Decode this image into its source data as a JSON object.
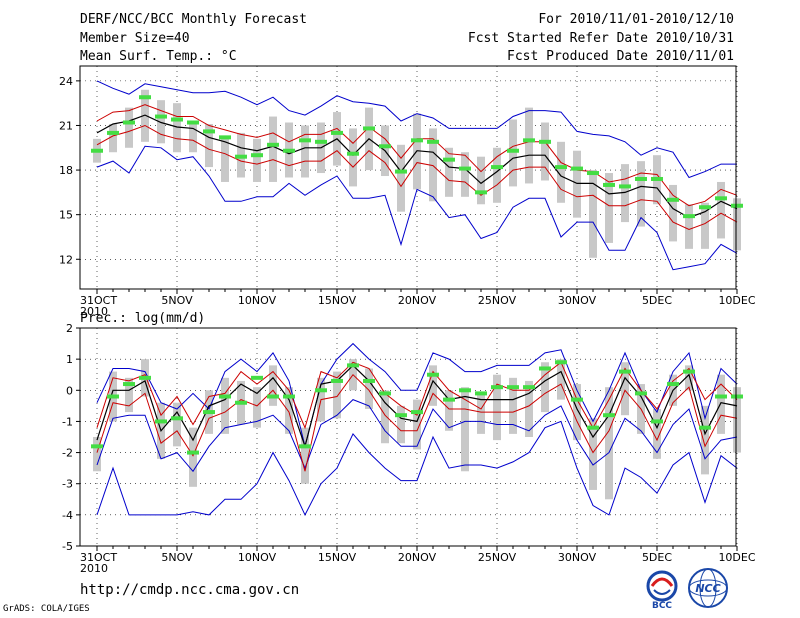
{
  "header": {
    "title": "DERF/NCC/BCC Monthly Forecast",
    "member": "Member Size=40",
    "variable": "Mean Surf. Temp.: °C",
    "period": "For 2010/11/01-2010/12/10",
    "started": "Fcst Started Refer Date 2010/10/31",
    "produced": "Fcst Produced Date 2010/11/01"
  },
  "footer": {
    "url": "http://cmdp.ncc.cma.gov.cn",
    "credit": "GrADS: COLA/IGES",
    "logo_left_label": "BCC",
    "logo_right_label": "NCC"
  },
  "colors": {
    "envelope": "#0000cc",
    "spread": "#cc0000",
    "mean": "#000000",
    "box": "#c8c8c8",
    "marker": "#44dd44"
  },
  "chart_data": [
    {
      "type": "box-line",
      "title": "Mean Surf. Temp.: °C",
      "xlabel": "",
      "ylabel": "",
      "ylim": [
        10,
        25
      ],
      "yticks": [
        12,
        15,
        18,
        21,
        24
      ],
      "x_tick_labels": [
        "31OCT\n2010",
        "5NOV",
        "10NOV",
        "15NOV",
        "20NOV",
        "25NOV",
        "30NOV",
        "5DEC",
        "10DEC"
      ],
      "days": 41,
      "series": [
        {
          "name": "max",
          "values": [
            24.0,
            23.5,
            23.1,
            23.8,
            23.6,
            23.4,
            23.2,
            23.2,
            23.3,
            22.9,
            22.4,
            22.9,
            22.0,
            21.7,
            22.3,
            23.0,
            22.6,
            22.5,
            22.3,
            21.3,
            21.8,
            21.5,
            20.8,
            20.8,
            20.8,
            20.8,
            21.6,
            22.0,
            22.0,
            21.9,
            20.6,
            20.4,
            20.3,
            19.9,
            19.0,
            19.5,
            19.2,
            17.5,
            17.9,
            18.4,
            18.4
          ]
        },
        {
          "name": "upper",
          "values": [
            21.3,
            21.9,
            22.0,
            22.4,
            22.0,
            21.6,
            21.6,
            21.0,
            20.7,
            20.4,
            20.2,
            20.5,
            19.9,
            20.4,
            20.4,
            20.8,
            19.8,
            20.9,
            20.1,
            18.8,
            20.1,
            20.1,
            19.1,
            19.0,
            17.9,
            18.9,
            19.6,
            19.9,
            19.9,
            18.5,
            18.0,
            17.9,
            17.2,
            17.4,
            17.8,
            17.7,
            16.3,
            15.6,
            15.9,
            16.7,
            16.3
          ]
        },
        {
          "name": "mean",
          "values": [
            20.5,
            21.1,
            21.3,
            21.7,
            21.2,
            20.9,
            20.8,
            20.2,
            19.9,
            19.5,
            19.3,
            19.6,
            19.1,
            19.5,
            19.5,
            20.1,
            19.0,
            20.1,
            19.3,
            17.9,
            19.3,
            19.2,
            18.2,
            18.1,
            17.1,
            17.9,
            18.8,
            19.0,
            19.0,
            17.6,
            17.1,
            17.1,
            16.4,
            16.5,
            16.9,
            16.8,
            15.4,
            14.8,
            15.2,
            15.9,
            15.4
          ]
        },
        {
          "name": "lower",
          "values": [
            19.7,
            20.3,
            20.6,
            21.0,
            20.4,
            20.1,
            20.0,
            19.4,
            19.1,
            18.6,
            18.4,
            18.7,
            18.3,
            18.6,
            18.6,
            19.3,
            18.2,
            19.3,
            18.5,
            16.9,
            18.5,
            18.3,
            17.3,
            17.2,
            16.3,
            17.0,
            18.0,
            18.2,
            18.2,
            16.7,
            16.2,
            16.3,
            15.6,
            15.6,
            16.0,
            15.9,
            14.5,
            14.0,
            14.4,
            15.1,
            14.5
          ]
        },
        {
          "name": "min",
          "values": [
            18.2,
            18.6,
            17.8,
            19.6,
            19.5,
            18.7,
            18.9,
            17.6,
            15.9,
            15.9,
            16.2,
            16.2,
            17.1,
            16.3,
            17.0,
            17.6,
            16.1,
            16.1,
            16.3,
            13.0,
            16.7,
            16.2,
            14.8,
            15.0,
            13.4,
            13.8,
            15.5,
            16.1,
            16.1,
            13.5,
            14.5,
            14.5,
            12.6,
            12.6,
            14.8,
            13.8,
            11.3,
            11.5,
            11.7,
            13.0,
            12.4
          ]
        },
        {
          "name": "box_high",
          "values": [
            20.1,
            21.1,
            22.2,
            23.4,
            22.7,
            22.5,
            21.2,
            21.1,
            20.2,
            20.5,
            20.1,
            21.6,
            21.2,
            21.0,
            21.2,
            21.9,
            20.8,
            22.2,
            21.0,
            19.7,
            21.8,
            20.8,
            19.5,
            19.2,
            18.9,
            19.5,
            21.4,
            22.2,
            21.2,
            19.9,
            19.3,
            18.0,
            17.8,
            18.4,
            18.6,
            19.0,
            17.0,
            15.7,
            15.8,
            17.2,
            16.1
          ]
        },
        {
          "name": "box_low",
          "values": [
            18.5,
            19.2,
            19.5,
            19.9,
            19.8,
            19.2,
            19.2,
            18.2,
            17.2,
            17.5,
            17.2,
            17.2,
            17.5,
            17.5,
            17.8,
            18.3,
            16.9,
            18.0,
            17.6,
            15.2,
            16.7,
            15.9,
            16.2,
            16.2,
            15.7,
            15.8,
            16.9,
            17.1,
            17.3,
            15.8,
            14.8,
            12.1,
            13.1,
            14.5,
            14.2,
            15.7,
            13.2,
            12.7,
            12.7,
            13.4,
            12.6
          ]
        },
        {
          "name": "marker",
          "values": [
            19.3,
            20.5,
            21.2,
            22.9,
            21.6,
            21.4,
            21.2,
            20.6,
            20.2,
            18.9,
            19.0,
            19.7,
            19.3,
            20.0,
            19.9,
            20.5,
            19.1,
            20.8,
            19.6,
            17.9,
            20.0,
            19.9,
            18.7,
            18.1,
            16.5,
            18.2,
            19.3,
            20.0,
            19.9,
            18.2,
            18.1,
            17.8,
            17.0,
            16.9,
            17.4,
            17.4,
            16.0,
            14.9,
            15.5,
            16.1,
            15.6
          ]
        }
      ]
    },
    {
      "type": "box-line",
      "title": "Prec.: log(mm/d)",
      "xlabel": "",
      "ylabel": "",
      "ylim": [
        -5,
        2
      ],
      "yticks": [
        -5,
        -4,
        -3,
        -2,
        -1,
        0,
        1,
        2
      ],
      "x_tick_labels": [
        "31OCT\n2010",
        "5NOV",
        "10NOV",
        "15NOV",
        "20NOV",
        "25NOV",
        "30NOV",
        "5DEC",
        "10DEC"
      ],
      "days": 41,
      "series": [
        {
          "name": "max",
          "values": [
            -0.4,
            0.7,
            0.7,
            0.6,
            -0.4,
            -0.6,
            -0.1,
            -0.6,
            0.6,
            1.0,
            0.6,
            1.2,
            0.3,
            -1.8,
            0.2,
            1.0,
            1.5,
            1.0,
            0.6,
            0.0,
            0.0,
            1.2,
            1.0,
            0.6,
            0.6,
            0.8,
            0.8,
            0.8,
            1.2,
            1.3,
            0.0,
            -1.0,
            0.0,
            1.2,
            0.0,
            -0.7,
            0.6,
            1.2,
            -0.9,
            0.7,
            0.2
          ]
        },
        {
          "name": "upper",
          "values": [
            -1.2,
            0.4,
            0.3,
            0.5,
            -0.8,
            -0.2,
            -1.1,
            -0.2,
            -0.1,
            0.6,
            0.2,
            0.6,
            0.0,
            -1.2,
            0.6,
            0.4,
            0.9,
            0.7,
            -0.1,
            -0.5,
            -0.8,
            0.6,
            0.0,
            -0.3,
            -0.6,
            0.2,
            0.0,
            0.0,
            0.5,
            0.9,
            -0.3,
            -1.2,
            -0.3,
            0.7,
            0.0,
            -0.6,
            0.3,
            0.7,
            -0.3,
            0.2,
            -0.3
          ]
        },
        {
          "name": "mean",
          "values": [
            -1.6,
            0.0,
            0.0,
            0.3,
            -1.3,
            -0.7,
            -1.6,
            -0.5,
            -0.3,
            0.2,
            -0.1,
            0.4,
            -0.3,
            -1.8,
            0.2,
            0.3,
            0.8,
            0.3,
            -0.4,
            -0.9,
            -1.0,
            0.3,
            -0.3,
            -0.2,
            -0.3,
            -0.3,
            -0.3,
            -0.1,
            0.3,
            0.6,
            -0.6,
            -1.5,
            -0.8,
            0.4,
            -0.2,
            -1.2,
            0.0,
            0.5,
            -1.4,
            -0.4,
            -0.5
          ]
        },
        {
          "name": "lower",
          "values": [
            -2.0,
            -0.4,
            -0.5,
            -0.1,
            -1.7,
            -1.3,
            -2.1,
            -0.9,
            -0.7,
            -0.3,
            -0.5,
            0.0,
            -0.7,
            -2.6,
            -0.3,
            -0.2,
            0.5,
            0.0,
            -0.8,
            -1.3,
            -1.3,
            -0.1,
            -0.6,
            -0.6,
            -0.7,
            -0.7,
            -0.7,
            -0.5,
            -0.1,
            0.2,
            -1.0,
            -2.0,
            -1.3,
            0.0,
            -0.6,
            -1.6,
            -0.4,
            0.1,
            -1.8,
            -0.8,
            -0.9
          ]
        },
        {
          "name": "min",
          "values": [
            -2.4,
            -0.9,
            -0.8,
            -0.8,
            -2.2,
            -2.0,
            -2.6,
            -1.8,
            -1.2,
            -1.1,
            -1.0,
            -0.8,
            -1.3,
            -2.5,
            -1.1,
            -0.8,
            -0.3,
            -0.5,
            -1.3,
            -1.8,
            -1.8,
            -0.6,
            -1.2,
            -1.0,
            -1.0,
            -1.1,
            -1.1,
            -1.3,
            -0.8,
            -0.5,
            -1.6,
            -2.4,
            -2.0,
            -0.9,
            -1.3,
            -2.0,
            -1.1,
            -0.6,
            -2.2,
            -1.6,
            -1.5
          ]
        },
        {
          "name": "bottom",
          "values": [
            -4.0,
            -2.5,
            -4.0,
            -4.0,
            -4.0,
            -4.0,
            -3.9,
            -4.0,
            -3.5,
            -3.5,
            -3.0,
            -2.0,
            -2.9,
            -4.0,
            -3.0,
            -2.5,
            -1.4,
            -2.0,
            -2.5,
            -2.9,
            -2.9,
            -1.5,
            -2.5,
            -2.4,
            -2.4,
            -2.5,
            -2.3,
            -2.0,
            -1.2,
            -1.0,
            -2.5,
            -3.7,
            -4.0,
            -2.5,
            -2.8,
            -3.3,
            -2.4,
            -2.0,
            -3.6,
            -2.1,
            -2.5
          ]
        },
        {
          "name": "box_high",
          "values": [
            -1.5,
            0.6,
            0.4,
            1.0,
            -0.4,
            -0.4,
            -1.2,
            0.0,
            0.4,
            0.3,
            0.1,
            0.8,
            0.1,
            -1.2,
            0.4,
            0.6,
            1.0,
            0.7,
            0.0,
            -0.5,
            -0.3,
            0.8,
            0.0,
            0.1,
            -0.1,
            0.5,
            0.4,
            0.3,
            0.9,
            1.0,
            0.2,
            -0.9,
            0.1,
            0.9,
            0.2,
            -0.6,
            0.5,
            0.8,
            -0.5,
            0.5,
            0.1
          ]
        },
        {
          "name": "box_low",
          "values": [
            -2.6,
            -1.0,
            -0.7,
            -0.2,
            -2.2,
            -1.8,
            -3.1,
            -1.4,
            -1.4,
            -1.1,
            -1.2,
            -0.5,
            -1.4,
            -3.0,
            -1.0,
            -0.9,
            0.0,
            -0.6,
            -1.7,
            -1.7,
            -1.9,
            -0.5,
            -1.3,
            -2.6,
            -1.4,
            -1.6,
            -1.4,
            -1.5,
            -0.7,
            -0.3,
            -1.6,
            -3.2,
            -3.5,
            -0.8,
            -1.4,
            -2.2,
            -0.5,
            0.0,
            -2.7,
            -1.4,
            -2.0
          ]
        },
        {
          "name": "marker",
          "values": [
            -1.8,
            -0.2,
            0.2,
            0.4,
            -1.0,
            -0.9,
            -2.0,
            -0.7,
            -0.2,
            -0.4,
            0.4,
            -0.2,
            -0.2,
            -1.8,
            0.0,
            0.3,
            0.8,
            0.3,
            -0.1,
            -0.8,
            -0.7,
            0.5,
            -0.3,
            0.0,
            -0.1,
            0.1,
            0.1,
            0.1,
            0.7,
            0.9,
            -0.3,
            -1.2,
            -0.8,
            0.6,
            -0.1,
            -1.0,
            0.2,
            0.6,
            -1.2,
            -0.2,
            -0.2
          ]
        }
      ]
    }
  ]
}
